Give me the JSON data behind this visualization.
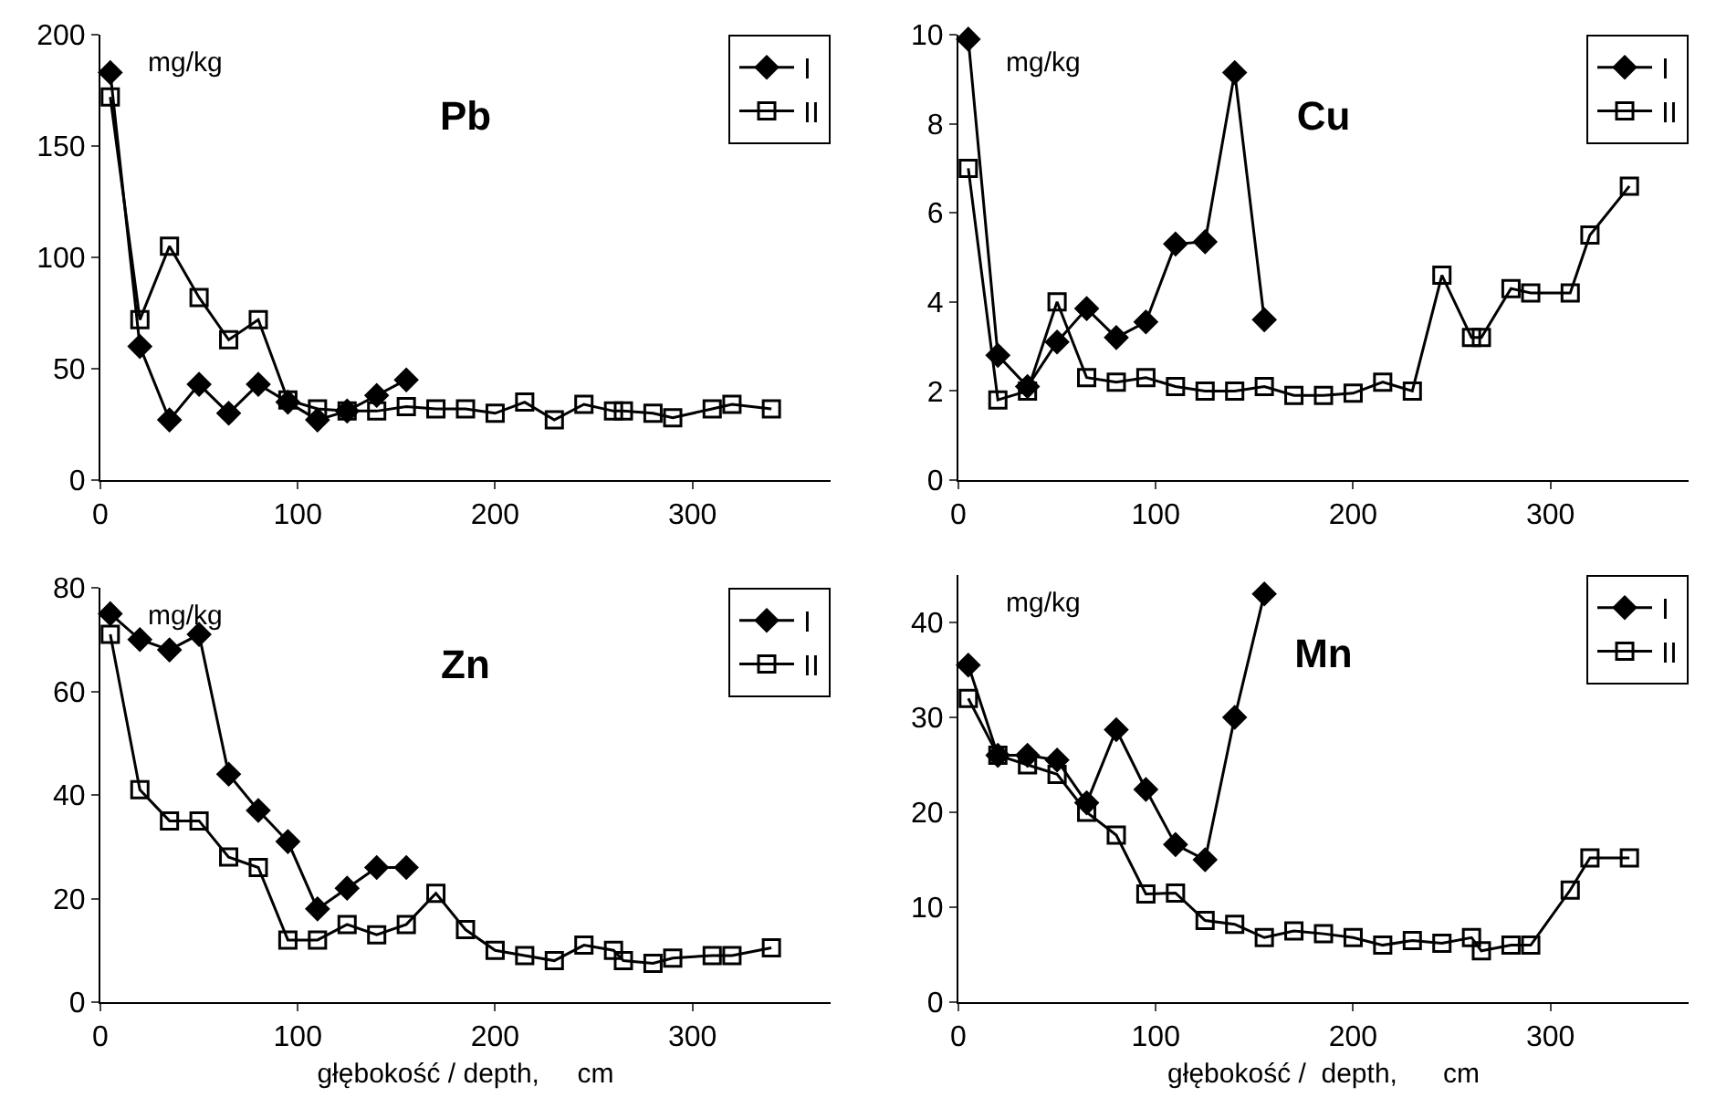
{
  "chart_data": [
    {
      "type": "line",
      "title": "Pb",
      "ylabel": "mg/kg",
      "xlim": [
        0,
        370
      ],
      "xticks": [
        0,
        100,
        200,
        300
      ],
      "ylim": [
        0,
        200
      ],
      "yticks": [
        0,
        50,
        100,
        150,
        200
      ],
      "grid": false,
      "legend": "top right",
      "line_style": "solid",
      "series": [
        {
          "name": "I",
          "color": "#000000",
          "marker": "diamond",
          "x": [
            5,
            20,
            35,
            50,
            65,
            80,
            95,
            110,
            125,
            140,
            155
          ],
          "values": [
            183,
            60,
            27,
            43,
            30,
            43,
            35,
            27,
            31,
            38,
            45
          ]
        },
        {
          "name": "II",
          "color": "#000000",
          "marker": "square",
          "x": [
            5,
            20,
            35,
            50,
            65,
            80,
            95,
            110,
            125,
            140,
            155,
            170,
            185,
            200,
            215,
            230,
            245,
            260,
            265,
            280,
            290,
            310,
            320,
            340
          ],
          "values": [
            172,
            72,
            105,
            82,
            63,
            72,
            36,
            32,
            31,
            31,
            33,
            32,
            32,
            30,
            35,
            27,
            34,
            31,
            31,
            30,
            28,
            32,
            34,
            32
          ]
        }
      ]
    },
    {
      "type": "line",
      "title": "Cu",
      "ylabel": "mg/kg",
      "xlim": [
        0,
        370
      ],
      "xticks": [
        0,
        100,
        200,
        300
      ],
      "ylim": [
        0,
        10
      ],
      "yticks": [
        0,
        2,
        4,
        6,
        8,
        10
      ],
      "grid": false,
      "legend": "top right",
      "line_style": "solid",
      "series": [
        {
          "name": "I",
          "color": "#000000",
          "marker": "diamond",
          "x": [
            5,
            20,
            35,
            50,
            65,
            80,
            95,
            110,
            125,
            140,
            155
          ],
          "values": [
            9.9,
            2.8,
            2.1,
            3.1,
            3.85,
            3.2,
            3.55,
            5.3,
            5.35,
            9.15,
            3.6
          ]
        },
        {
          "name": "II",
          "color": "#000000",
          "marker": "square",
          "x": [
            5,
            20,
            35,
            50,
            65,
            80,
            95,
            110,
            125,
            140,
            155,
            170,
            185,
            200,
            215,
            230,
            245,
            260,
            265,
            280,
            290,
            310,
            320,
            340
          ],
          "values": [
            7.0,
            1.8,
            2.0,
            4.0,
            2.3,
            2.2,
            2.3,
            2.1,
            2.0,
            2.0,
            2.1,
            1.9,
            1.9,
            1.95,
            2.2,
            2.0,
            4.6,
            3.2,
            3.2,
            4.3,
            4.2,
            4.2,
            5.5,
            6.6
          ]
        }
      ]
    },
    {
      "type": "line",
      "title": "Zn",
      "ylabel": "mg/kg",
      "xlabel": "głębokość / depth,     cm",
      "xlim": [
        0,
        370
      ],
      "xticks": [
        0,
        100,
        200,
        300
      ],
      "ylim": [
        0,
        80
      ],
      "yticks": [
        0,
        20,
        40,
        60,
        80
      ],
      "grid": false,
      "legend": "top right",
      "line_style": "solid",
      "series": [
        {
          "name": "I",
          "color": "#000000",
          "marker": "diamond",
          "x": [
            5,
            20,
            35,
            50,
            65,
            80,
            95,
            110,
            125,
            140,
            155
          ],
          "values": [
            75,
            70,
            68,
            71,
            44,
            37,
            31,
            18,
            22,
            26,
            26
          ]
        },
        {
          "name": "II",
          "color": "#000000",
          "marker": "square",
          "x": [
            5,
            20,
            35,
            50,
            65,
            80,
            95,
            110,
            125,
            140,
            155,
            170,
            185,
            200,
            215,
            230,
            245,
            260,
            265,
            280,
            290,
            310,
            320,
            340
          ],
          "values": [
            71,
            41,
            35,
            35,
            28,
            26,
            12,
            12,
            15,
            13,
            15,
            21,
            14,
            10,
            9,
            8,
            11,
            10,
            8,
            7.5,
            8.5,
            9,
            9,
            10.5
          ]
        }
      ]
    },
    {
      "type": "line",
      "title": "Mn",
      "ylabel": "mg/kg",
      "xlabel": "głębokość /  depth,      cm",
      "xlim": [
        0,
        370
      ],
      "xticks": [
        0,
        100,
        200,
        300
      ],
      "ylim": [
        0,
        45
      ],
      "yticks": [
        0,
        10,
        20,
        30,
        40
      ],
      "grid": false,
      "legend": "top right",
      "line_style": "solid",
      "series": [
        {
          "name": "I",
          "color": "#000000",
          "marker": "diamond",
          "x": [
            5,
            20,
            35,
            50,
            65,
            80,
            95,
            110,
            125,
            140,
            155
          ],
          "values": [
            35.5,
            26,
            26,
            25.5,
            21,
            28.7,
            22.4,
            16.6,
            15,
            30,
            43
          ]
        },
        {
          "name": "II",
          "color": "#000000",
          "marker": "square",
          "x": [
            5,
            20,
            35,
            50,
            65,
            80,
            95,
            110,
            125,
            140,
            155,
            170,
            185,
            200,
            215,
            230,
            245,
            260,
            265,
            280,
            290,
            310,
            320,
            340
          ],
          "values": [
            32,
            26,
            25,
            24,
            20,
            17.6,
            11.4,
            11.5,
            8.6,
            8.2,
            6.8,
            7.5,
            7.2,
            6.8,
            6,
            6.5,
            6.2,
            6.8,
            5.4,
            6,
            6,
            11.8,
            15.2,
            15.2
          ]
        }
      ]
    }
  ]
}
